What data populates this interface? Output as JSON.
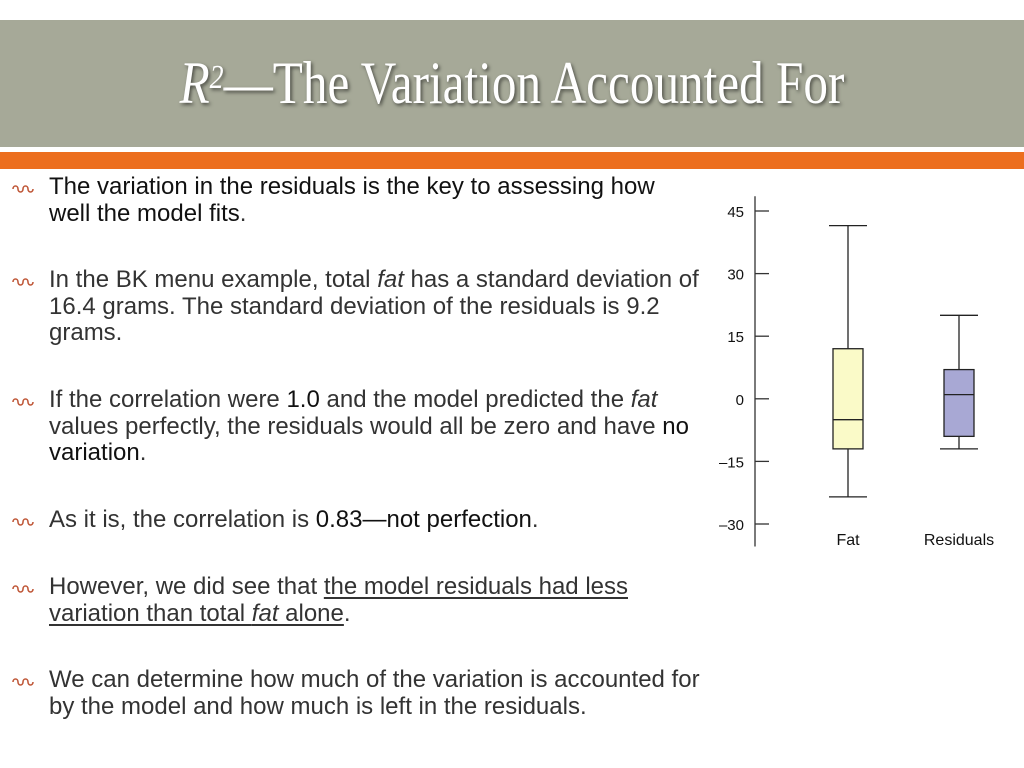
{
  "slide": {
    "title_r": "R",
    "title_sup": "2",
    "title_rest": "—The Variation Accounted For"
  },
  "bullets": [
    {
      "p1": "The variation in the residuals is the key to assessing how well the model fits",
      "p2": "."
    },
    {
      "p1": "In the BK menu example, total ",
      "em1": "fat",
      "p2": " has a standard deviation of 16.4 grams. The standard deviation of the residuals is 9.2 grams."
    },
    {
      "p1": "If the correlation were ",
      "s1": "1.0",
      "p2": " and the model predicted the ",
      "em1": "fat",
      "p3": " values perfectly, the residuals would all be zero and have ",
      "s2": "no variation",
      "p4": "."
    },
    {
      "p1": "As it is, the correlation is ",
      "s1": "0.83—not perfection",
      "p2": "."
    },
    {
      "p1": "However, we did see that ",
      "u1": "the model residuals had less variation than total ",
      "uem": "fat",
      "u2": " alone",
      "p2": "."
    },
    {
      "p1": "We can determine how much of the variation is accounted for by the model and how much is left in the residuals."
    }
  ],
  "chart_data": {
    "type": "boxplot",
    "ylim": [
      -33,
      49
    ],
    "yticks": [
      45,
      30,
      15,
      0,
      -15,
      -30
    ],
    "ytick_labels": [
      "45",
      "30",
      "15",
      "0",
      "–15",
      "–30"
    ],
    "categories": [
      "Fat",
      "Residuals"
    ],
    "boxes": [
      {
        "name": "Fat",
        "whisker_low": -23.5,
        "q1": -12,
        "median": -5,
        "q3": 12,
        "whisker_high": 41.5,
        "color": "#fafac8"
      },
      {
        "name": "Residuals",
        "whisker_low": -12,
        "q1": -9,
        "median": 1,
        "q3": 7,
        "whisker_high": 20,
        "color": "#a8a8d4"
      }
    ]
  }
}
